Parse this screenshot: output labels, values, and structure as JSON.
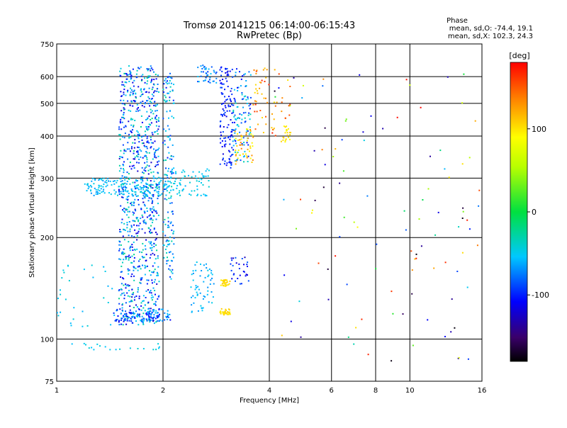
{
  "chart_data": {
    "type": "scatter",
    "title": "Tromsø 20141215 06:14:00-06:15:43",
    "subtitle": "RwPretec (Bp)",
    "xlabel": "Frequency [MHz]",
    "ylabel": "Stationary phase Virtual Height [km]",
    "xscale": "log",
    "yscale": "log",
    "xlim": [
      1,
      16
    ],
    "ylim": [
      75,
      750
    ],
    "xticks": [
      1,
      2,
      4,
      6,
      8,
      10,
      16
    ],
    "xtick_labels": [
      "1",
      "2",
      "4",
      "6",
      "8",
      "10",
      "16"
    ],
    "yticks": [
      75,
      100,
      200,
      300,
      400,
      500,
      600,
      750
    ],
    "ytick_labels": [
      "75",
      "100",
      "200",
      "300",
      "400",
      "500",
      "600",
      "750"
    ],
    "grid_x": [
      2,
      4,
      6,
      8,
      10
    ],
    "grid_y": [
      100,
      200,
      300,
      400,
      500,
      600
    ],
    "grid": true,
    "stats": {
      "heading": "Phase",
      "line_o": "mean, sd,O: -74.4, 19.1",
      "line_x": "mean, sd,X: 102.3, 24.3"
    },
    "colorbar": {
      "label": "[deg]",
      "range": [
        -180,
        180
      ],
      "ticks": [
        100,
        0,
        -100
      ],
      "tick_labels": [
        "100",
        "0",
        "-100"
      ],
      "colormap": "rainbow"
    },
    "point_groups": [
      {
        "x": [
          1.5,
          1.95
        ],
        "y": [
          110,
          650
        ],
        "n": 900,
        "phase": [
          -125,
          -20
        ]
      },
      {
        "x": [
          2.0,
          2.15
        ],
        "y": [
          150,
          620
        ],
        "n": 150,
        "phase": [
          -100,
          -25
        ]
      },
      {
        "x": [
          1.2,
          2.1
        ],
        "y": [
          265,
          300
        ],
        "n": 180,
        "phase": [
          -70,
          -45
        ]
      },
      {
        "x": [
          1.45,
          2.1
        ],
        "y": [
          113,
          123
        ],
        "n": 120,
        "phase": [
          -110,
          -50
        ]
      },
      {
        "x": [
          2.1,
          2.7
        ],
        "y": [
          265,
          320
        ],
        "n": 70,
        "phase": [
          -60,
          -40
        ]
      },
      {
        "x": [
          2.4,
          2.8
        ],
        "y": [
          120,
          170
        ],
        "n": 60,
        "phase": [
          -70,
          -45
        ]
      },
      {
        "x": [
          2.5,
          2.85
        ],
        "y": [
          575,
          650
        ],
        "n": 40,
        "phase": [
          -100,
          -50
        ]
      },
      {
        "x": [
          2.9,
          3.15
        ],
        "y": [
          320,
          650
        ],
        "n": 120,
        "phase": [
          -120,
          -85
        ]
      },
      {
        "x": [
          3.15,
          3.55
        ],
        "y": [
          330,
          650
        ],
        "n": 110,
        "phase": [
          -110,
          -30
        ]
      },
      {
        "x": [
          3.2,
          3.6
        ],
        "y": [
          330,
          420
        ],
        "n": 50,
        "phase": [
          80,
          140
        ]
      },
      {
        "x": [
          3.6,
          4.6
        ],
        "y": [
          400,
          640
        ],
        "n": 60,
        "phase": [
          100,
          170
        ]
      },
      {
        "x": [
          4.3,
          4.6
        ],
        "y": [
          380,
          430
        ],
        "n": 20,
        "phase": [
          90,
          110
        ]
      },
      {
        "x": [
          2.9,
          3.1
        ],
        "y": [
          118,
          123
        ],
        "n": 30,
        "phase": [
          95,
          110
        ]
      },
      {
        "x": [
          2.9,
          3.1
        ],
        "y": [
          143,
          150
        ],
        "n": 30,
        "phase": [
          95,
          110
        ]
      },
      {
        "x": [
          3.1,
          3.5
        ],
        "y": [
          145,
          175
        ],
        "n": 30,
        "phase": [
          -130,
          -80
        ]
      },
      {
        "x": [
          1.0,
          1.45
        ],
        "y": [
          108,
          170
        ],
        "n": 30,
        "phase": [
          -60,
          -40
        ]
      },
      {
        "x": [
          1.1,
          2.0
        ],
        "y": [
          93,
          97
        ],
        "n": 20,
        "phase": [
          -60,
          -40
        ]
      },
      {
        "x": [
          4.0,
          16.0
        ],
        "y": [
          85,
          650
        ],
        "n": 110,
        "phase": [
          -180,
          180
        ]
      }
    ]
  }
}
